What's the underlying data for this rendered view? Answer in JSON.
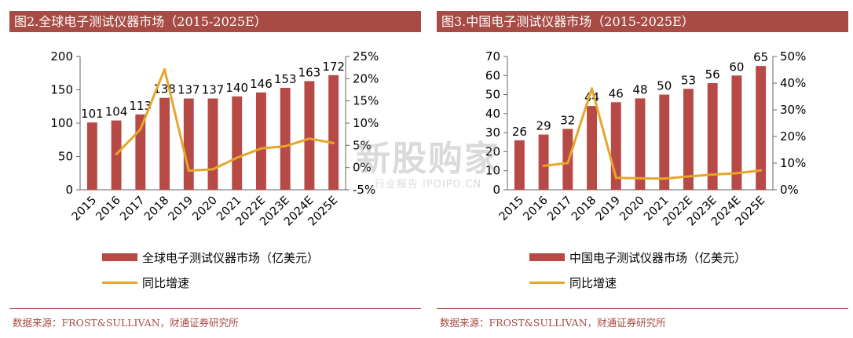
{
  "colors": {
    "title_bg": "#a84b44",
    "bar": "#b84a46",
    "line": "#e6a52b",
    "source_text": "#a84b44"
  },
  "watermark": {
    "main": "新股购家",
    "sub": "行业报告 IPOIPO.CN"
  },
  "chart_data": [
    {
      "type": "bar",
      "title": "图2.全球电子测试仪器市场（2015-2025E）",
      "categories": [
        "2015",
        "2016",
        "2017",
        "2018",
        "2019",
        "2020",
        "2021",
        "2022E",
        "2023E",
        "2024E",
        "2025E"
      ],
      "series": [
        {
          "name": "全球电子测试仪器市场（亿美元）",
          "type": "bar",
          "axis": "left",
          "values": [
            101,
            104,
            113,
            138,
            137,
            137,
            140,
            146,
            153,
            163,
            172
          ],
          "labels": [
            "101",
            "104",
            "113",
            "138",
            "137",
            "137",
            "140",
            "146",
            "153",
            "163",
            "172"
          ]
        },
        {
          "name": "同比增速",
          "type": "line",
          "axis": "right",
          "values": [
            null,
            3.0,
            8.6,
            22.1,
            -0.7,
            -0.4,
            2.2,
            4.3,
            4.8,
            6.5,
            5.5
          ]
        }
      ],
      "ylim_left": [
        0,
        200
      ],
      "yticks_left": [
        "0",
        "50",
        "100",
        "150",
        "200"
      ],
      "ylim_right": [
        -5,
        25
      ],
      "yticks_right": [
        "-5%",
        "0%",
        "5%",
        "10%",
        "15%",
        "20%",
        "25%"
      ],
      "source": "数据来源：FROST&SULLIVAN，财通证券研究所"
    },
    {
      "type": "bar",
      "title": "图3.中国电子测试仪器市场（2015-2025E）",
      "categories": [
        "2015",
        "2016",
        "2017",
        "2018",
        "2019",
        "2020",
        "2021",
        "2022E",
        "2023E",
        "2024E",
        "2025E"
      ],
      "series": [
        {
          "name": "中国电子测试仪器市场（亿美元）",
          "type": "bar",
          "axis": "left",
          "values": [
            26,
            29,
            32,
            44,
            46,
            48,
            50,
            53,
            56,
            60,
            65
          ],
          "labels": [
            "26",
            "29",
            "32",
            "44",
            "46",
            "48",
            "50",
            "53",
            "56",
            "60",
            "65"
          ]
        },
        {
          "name": "同比增速",
          "type": "line",
          "axis": "right",
          "values": [
            null,
            9.0,
            10.0,
            38.0,
            4.5,
            4.3,
            4.2,
            5.0,
            5.7,
            6.2,
            7.3
          ]
        }
      ],
      "ylim_left": [
        0,
        70
      ],
      "yticks_left": [
        "0",
        "10",
        "20",
        "30",
        "40",
        "50",
        "60",
        "70"
      ],
      "ylim_right": [
        0,
        50
      ],
      "yticks_right": [
        "0%",
        "10%",
        "20%",
        "30%",
        "40%",
        "50%"
      ],
      "source": "数据来源：FROST&SULLIVAN，财通证券研究所"
    }
  ]
}
